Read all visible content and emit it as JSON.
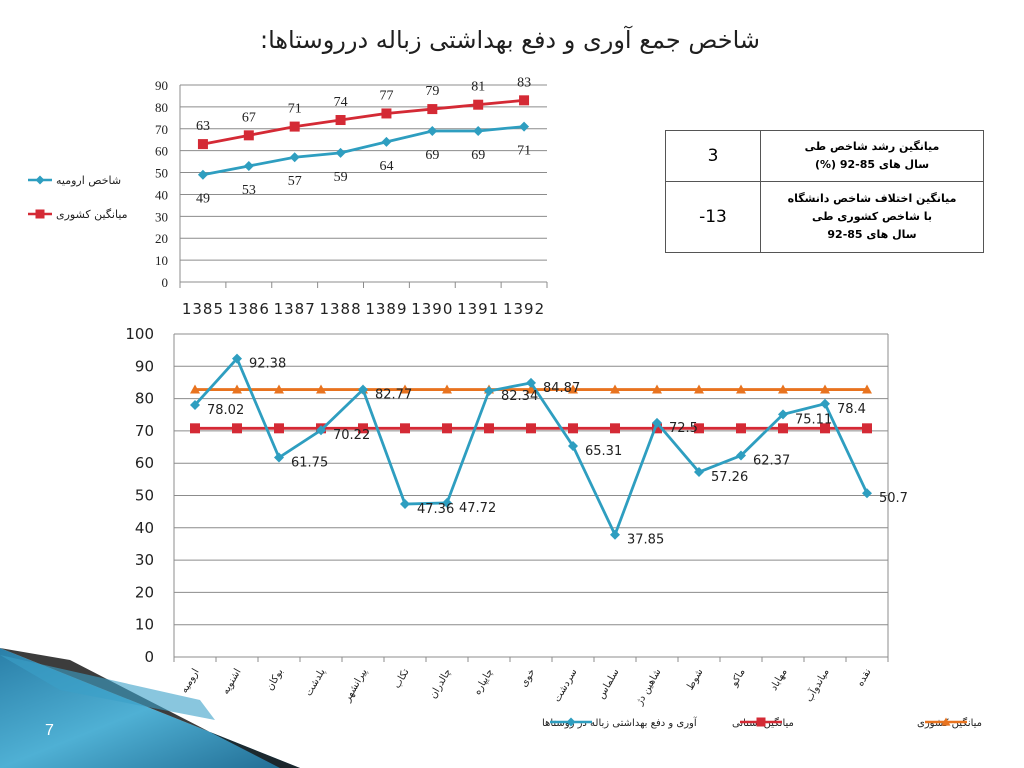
{
  "slide": {
    "title": "شاخص جمع آوری و دفع بهداشتی زباله درروستاها:",
    "page_number": "7"
  },
  "table": {
    "rows": [
      {
        "value": "3",
        "label_lines": [
          "میانگین رشد شاخص طی",
          "سال های 85-92 (%)"
        ]
      },
      {
        "value": "-13",
        "label_lines": [
          "میانگین اختلاف شاخص دانشگاه",
          "با شاخص کشوری طی",
          "سال های 85-92"
        ]
      }
    ]
  },
  "chart_data": [
    {
      "type": "line",
      "categories": [
        "1385",
        "1386",
        "1387",
        "1388",
        "1389",
        "1390",
        "1391",
        "1392"
      ],
      "ylim": [
        0,
        90
      ],
      "yticks": [
        0,
        10,
        20,
        30,
        40,
        50,
        60,
        70,
        80,
        90
      ],
      "grid": true,
      "legend_position": "left",
      "series": [
        {
          "name": "شاخص ارومیه",
          "color": "#2e9ec0",
          "marker": "diamond",
          "values": [
            49,
            53,
            57,
            59,
            64,
            69,
            69,
            71
          ],
          "label_position": "below"
        },
        {
          "name": "میانگین کشوری",
          "color": "#d42a35",
          "marker": "square",
          "values": [
            63,
            67,
            71,
            74,
            77,
            79,
            81,
            83
          ],
          "label_position": "above"
        }
      ]
    },
    {
      "type": "line",
      "categories": [
        "ارومیه",
        "اشنویه",
        "بوکان",
        "پلدشت",
        "پیرانشهر",
        "تکاب",
        "چالدران",
        "چایپاره",
        "خوی",
        "سردشت",
        "سلماس",
        "شاهین دژ",
        "شوط",
        "ماکو",
        "مهاباد",
        "میاندوآب",
        "نقده"
      ],
      "ylim": [
        0,
        100
      ],
      "yticks": [
        0,
        10,
        20,
        30,
        40,
        50,
        60,
        70,
        80,
        90,
        100
      ],
      "grid": true,
      "legend_position": "bottom",
      "series": [
        {
          "name": "آوری و دفع بهداشتی زباله در روستاها",
          "color": "#2e9ec0",
          "marker": "diamond",
          "values": [
            78.02,
            92.38,
            61.75,
            70.22,
            82.77,
            47.36,
            47.72,
            82.34,
            84.87,
            65.31,
            37.85,
            72.5,
            57.26,
            62.37,
            75.11,
            78.4,
            50.7
          ],
          "labels": [
            "78.02",
            "92.38",
            "61.75",
            "70.22",
            "82.77",
            "47.36",
            "47.72",
            "82.34",
            "84.87",
            "65.31",
            "37.85",
            "72.5",
            "57.26",
            "62.37",
            "75.11",
            "78.4",
            "50.7"
          ]
        },
        {
          "name": "میانگین استانی",
          "color": "#d42a35",
          "marker": "square",
          "values": [
            70.8,
            70.8,
            70.8,
            70.8,
            70.8,
            70.8,
            70.8,
            70.8,
            70.8,
            70.8,
            70.8,
            70.8,
            70.8,
            70.8,
            70.8,
            70.8,
            70.8
          ]
        },
        {
          "name": "میانگین کشوری",
          "color": "#e8731f",
          "marker": "triangle",
          "values": [
            82.8,
            82.8,
            82.8,
            82.8,
            82.8,
            82.8,
            82.8,
            82.8,
            82.8,
            82.8,
            82.8,
            82.8,
            82.8,
            82.8,
            82.8,
            82.8,
            82.8
          ]
        }
      ]
    }
  ]
}
